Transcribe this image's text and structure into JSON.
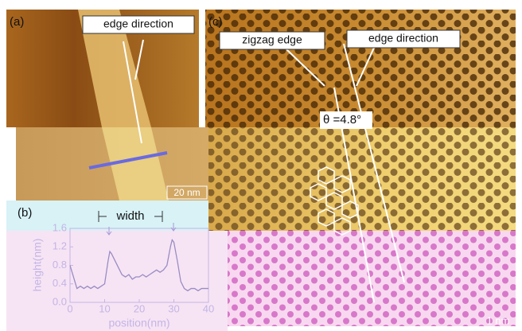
{
  "panels": {
    "a": {
      "label": "(a)",
      "callout": "edge direction",
      "scale": "20 nm"
    },
    "b": {
      "label": "(b)",
      "width_label": "width"
    },
    "c": {
      "label": "(c)",
      "zigzag": "zigzag edge",
      "callout": "edge direction",
      "angle": "θ =4.8°",
      "scale": "1 nm"
    }
  },
  "chart_data": {
    "type": "line",
    "xlabel": "position(nm)",
    "ylabel": "height(nm)",
    "x": [
      0,
      1,
      2,
      3,
      4,
      5,
      6,
      7,
      8,
      9,
      10,
      11,
      11.5,
      12,
      13,
      14,
      15,
      16,
      17,
      18,
      19,
      20,
      21,
      22,
      23,
      24,
      25,
      26,
      27,
      28,
      29,
      29.5,
      30,
      31,
      32,
      33,
      34,
      35,
      36,
      37,
      38,
      39,
      40
    ],
    "values": [
      0.8,
      0.55,
      0.3,
      0.35,
      0.3,
      0.35,
      0.3,
      0.35,
      0.3,
      0.35,
      0.4,
      0.9,
      1.1,
      1.05,
      0.9,
      0.75,
      0.6,
      0.55,
      0.6,
      0.5,
      0.55,
      0.55,
      0.6,
      0.55,
      0.6,
      0.65,
      0.7,
      0.65,
      0.7,
      0.8,
      1.2,
      1.35,
      1.3,
      0.9,
      0.45,
      0.3,
      0.25,
      0.3,
      0.3,
      0.25,
      0.3,
      0.3,
      0.3
    ],
    "color": "#9a8cc4",
    "xlim": [
      0,
      40
    ],
    "xticks": [
      0,
      10,
      20,
      30,
      40
    ],
    "ylim": [
      0,
      1.6
    ],
    "yticks": [
      {
        "value": 0,
        "label": "0.0"
      },
      0.4,
      0.8,
      1.2,
      1.6
    ]
  }
}
